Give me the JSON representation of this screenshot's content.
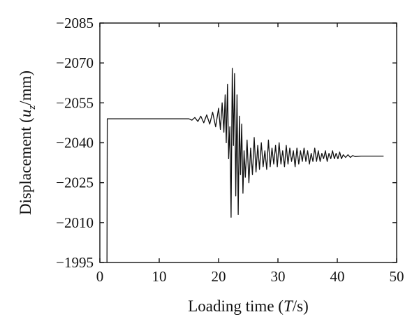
{
  "chart_data": {
    "type": "line",
    "title": "",
    "xlabel": {
      "prefix": "Loading time (",
      "var": "T",
      "suffix": "/s)"
    },
    "ylabel": {
      "prefix": "Displacement (",
      "var": "u",
      "sub": "z",
      "suffix": "/mm)"
    },
    "xlim": [
      0,
      50
    ],
    "ylim": [
      -1995,
      -2085
    ],
    "y_axis_inverted": true,
    "grid": false,
    "x_ticks": [
      0,
      10,
      20,
      30,
      40,
      50
    ],
    "y_ticks": [
      -2085,
      -2070,
      -2055,
      -2040,
      -2025,
      -2010,
      -1995
    ],
    "x_tick_labels": [
      "0",
      "10",
      "20",
      "30",
      "40",
      "50"
    ],
    "y_tick_labels": [
      "−2085",
      "−2070",
      "−2055",
      "−2040",
      "−2025",
      "−2010",
      "−1995"
    ],
    "series": [
      {
        "color": "#111111",
        "x": [
          1.2,
          1.25,
          2,
          6,
          10,
          14,
          15,
          15.5,
          16,
          16.5,
          17,
          17.5,
          18,
          18.5,
          19,
          19.5,
          20,
          20.3,
          20.6,
          20.9,
          21.1,
          21.3,
          21.5,
          21.7,
          21.9,
          22.1,
          22.3,
          22.5,
          22.7,
          22.9,
          23.1,
          23.3,
          23.5,
          23.7,
          23.9,
          24.1,
          24.3,
          24.5,
          24.8,
          25.1,
          25.4,
          25.7,
          26.0,
          26.3,
          26.6,
          26.9,
          27.2,
          27.5,
          27.8,
          28.1,
          28.4,
          28.7,
          29.0,
          29.3,
          29.6,
          29.9,
          30.2,
          30.5,
          30.8,
          31.1,
          31.4,
          31.7,
          32.0,
          32.3,
          32.6,
          32.9,
          33.2,
          33.5,
          33.8,
          34.1,
          34.4,
          34.7,
          35.0,
          35.3,
          35.6,
          35.9,
          36.2,
          36.5,
          36.8,
          37.1,
          37.4,
          37.7,
          38.0,
          38.3,
          38.6,
          38.9,
          39.2,
          39.5,
          39.8,
          40.1,
          40.4,
          40.7,
          41.0,
          41.4,
          41.8,
          42.2,
          42.6,
          43,
          44,
          45,
          46,
          47,
          47.8
        ],
        "y": [
          -1995,
          -2049,
          -2049,
          -2049,
          -2049,
          -2049,
          -2049,
          -2048.5,
          -2049.5,
          -2048,
          -2050,
          -2047.5,
          -2050.5,
          -2047,
          -2051.5,
          -2046,
          -2053,
          -2045,
          -2055,
          -2044,
          -2058,
          -2040,
          -2062,
          -2034,
          -2046,
          -2012,
          -2068,
          -2039,
          -2066,
          -2020,
          -2058,
          -2013,
          -2050,
          -2028,
          -2047,
          -2021,
          -2037,
          -2027,
          -2041,
          -2025,
          -2038,
          -2028,
          -2042,
          -2029,
          -2039,
          -2030,
          -2040,
          -2031,
          -2037,
          -2030,
          -2041,
          -2031,
          -2038,
          -2032,
          -2039,
          -2031,
          -2040,
          -2032,
          -2037,
          -2031,
          -2039,
          -2032,
          -2038,
          -2033,
          -2037,
          -2031,
          -2038,
          -2032,
          -2037,
          -2033,
          -2038,
          -2033,
          -2037,
          -2032,
          -2036,
          -2033,
          -2038,
          -2033,
          -2037,
          -2033,
          -2036,
          -2034,
          -2037,
          -2033,
          -2036,
          -2034,
          -2037,
          -2034,
          -2036,
          -2034,
          -2036.5,
          -2034,
          -2035.5,
          -2034.5,
          -2035.5,
          -2034.5,
          -2035.2,
          -2034.8,
          -2035,
          -2035,
          -2035,
          -2035,
          -2035
        ]
      }
    ]
  }
}
